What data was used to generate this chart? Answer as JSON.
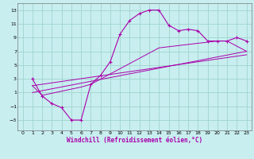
{
  "xlabel": "Windchill (Refroidissement éolien,°C)",
  "background_color": "#c8eef0",
  "grid_color": "#a0d4cc",
  "line_color": "#aa00aa",
  "xlim": [
    -0.5,
    23.5
  ],
  "ylim": [
    -4.5,
    14.0
  ],
  "xticks": [
    0,
    1,
    2,
    3,
    4,
    5,
    6,
    7,
    8,
    9,
    10,
    11,
    12,
    13,
    14,
    15,
    16,
    17,
    18,
    19,
    20,
    21,
    22,
    23
  ],
  "yticks": [
    -3,
    -1,
    1,
    3,
    5,
    7,
    9,
    11,
    13
  ],
  "curve1_x": [
    1,
    2,
    3,
    4,
    5,
    6,
    7,
    8,
    9,
    10,
    11,
    12,
    13,
    14,
    15,
    16,
    17,
    18,
    19,
    20,
    21,
    22,
    23
  ],
  "curve1_y": [
    3.0,
    0.5,
    -0.6,
    -1.2,
    -3.0,
    -3.0,
    2.2,
    3.5,
    5.5,
    9.5,
    11.5,
    12.5,
    13.0,
    13.0,
    10.8,
    10.0,
    10.2,
    10.0,
    8.5,
    8.5,
    8.5,
    9.0,
    8.5
  ],
  "line1_x": [
    1,
    23
  ],
  "line1_y": [
    2.0,
    6.5
  ],
  "line2_x": [
    1,
    23
  ],
  "line2_y": [
    1.0,
    7.0
  ],
  "poly_x": [
    1,
    2,
    6,
    7,
    14,
    20,
    21,
    23
  ],
  "poly_y": [
    2.0,
    0.6,
    1.8,
    2.2,
    7.5,
    8.5,
    8.5,
    7.0
  ]
}
